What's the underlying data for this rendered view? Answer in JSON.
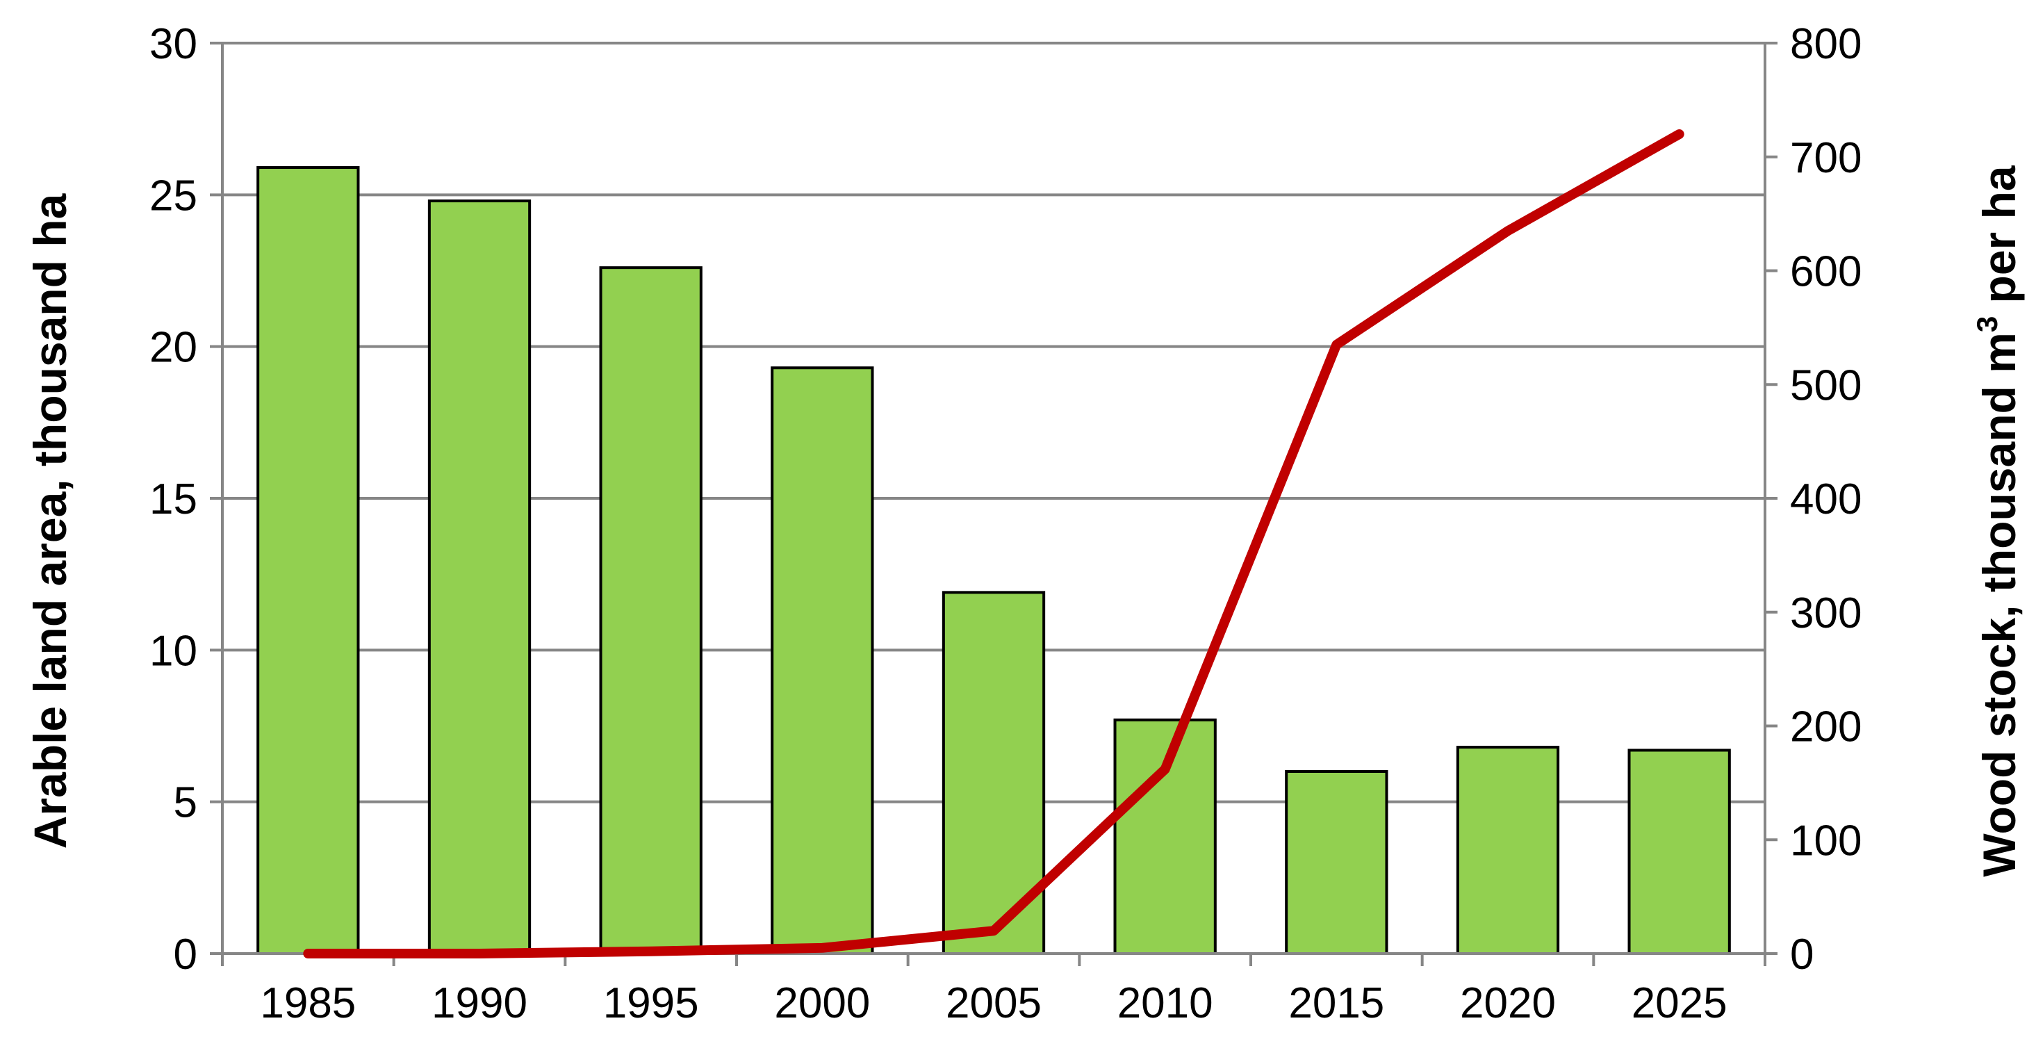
{
  "chart_data": {
    "type": "bar",
    "categories": [
      "1985",
      "1990",
      "1995",
      "2000",
      "2005",
      "2010",
      "2015",
      "2020",
      "2025"
    ],
    "series": [
      {
        "type": "bar",
        "axis": "left",
        "color": "#92d050",
        "values": [
          25.9,
          24.8,
          22.6,
          19.3,
          11.9,
          7.7,
          6.0,
          6.8,
          6.7
        ]
      },
      {
        "type": "line",
        "axis": "right",
        "color": "#c00000",
        "values": [
          0,
          0,
          2,
          5,
          20,
          162,
          535,
          635,
          720
        ]
      }
    ],
    "ylabel": "Arable land area, thousand ha",
    "ylabel_right": {
      "main": "Wood stock, thousand m",
      "superscript": "3",
      "suffix": " per ha"
    },
    "ylim": [
      0,
      30
    ],
    "ylim_right": [
      0,
      800
    ],
    "yticks": [
      "0",
      "5",
      "10",
      "15",
      "20",
      "25",
      "30"
    ],
    "yticks_right": [
      "0",
      "100",
      "200",
      "300",
      "400",
      "500",
      "600",
      "700",
      "800"
    ],
    "grid": true,
    "legend": "none"
  }
}
